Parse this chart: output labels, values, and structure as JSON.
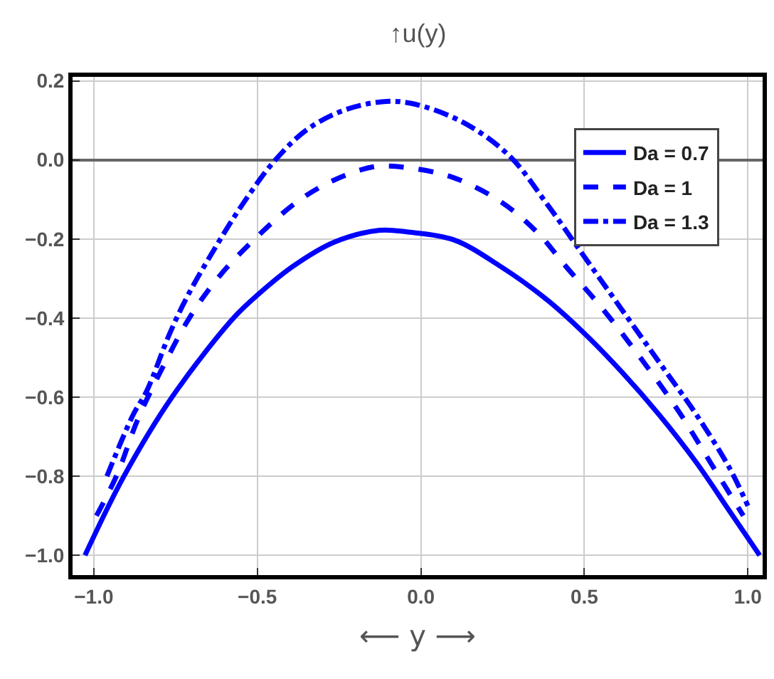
{
  "chart_data": {
    "type": "line",
    "title": "↑u(y)",
    "xlabel": "⟵ y ⟶",
    "xlim": [
      -1.065,
      1.045
    ],
    "xticks": [
      {
        "value": -1,
        "label": "−1.0"
      },
      {
        "value": -0.5,
        "label": "−0.5"
      },
      {
        "value": 0,
        "label": "0.0"
      },
      0.5,
      {
        "value": 1,
        "label": "1.0"
      }
    ],
    "ylim": [
      -1.05,
      0.21
    ],
    "yticks": [
      {
        "value": -1,
        "label": "−1.0"
      },
      {
        "value": -0.8,
        "label": "−0.8"
      },
      {
        "value": -0.6,
        "label": "−0.6"
      },
      {
        "value": -0.4,
        "label": "−0.4"
      },
      {
        "value": -0.2,
        "label": "−0.2"
      },
      {
        "value": 0,
        "label": "0.0"
      },
      0.2
    ],
    "grid": true,
    "legend": "top right",
    "series": [
      {
        "name": "Da = 0.7",
        "color": "#0000ff",
        "line_style": "solid",
        "x": [
          -1.027,
          -0.908,
          -0.761,
          -0.573,
          -0.5,
          -0.391,
          -0.265,
          -0.126,
          -0.043,
          0.1,
          0.243,
          0.386,
          0.5,
          0.614,
          0.729,
          0.843,
          0.943,
          1.036
        ],
        "values": [
          -1.0,
          -0.8,
          -0.6,
          -0.4,
          -0.342,
          -0.269,
          -0.208,
          -0.178,
          -0.182,
          -0.202,
          -0.269,
          -0.354,
          -0.439,
          -0.536,
          -0.645,
          -0.766,
          -0.887,
          -1.0
        ]
      },
      {
        "name": "Da = 1",
        "color": "#0000ff",
        "line_style": "dashed",
        "x": [
          -0.992,
          -0.929,
          -0.866,
          -0.789,
          -0.705,
          -0.615,
          -0.503,
          -0.377,
          -0.265,
          -0.14,
          -0.029,
          0.1,
          0.243,
          0.357,
          0.443,
          0.557,
          0.671,
          0.786,
          0.886,
          0.986
        ],
        "values": [
          -0.9,
          -0.796,
          -0.657,
          -0.524,
          -0.396,
          -0.293,
          -0.196,
          -0.105,
          -0.051,
          -0.017,
          -0.021,
          -0.045,
          -0.105,
          -0.184,
          -0.269,
          -0.378,
          -0.5,
          -0.633,
          -0.766,
          -0.9
        ]
      },
      {
        "name": "Da = 1.3",
        "color": "#0000ff",
        "line_style": "dashdot",
        "x": [
          -0.96,
          -0.88,
          -0.838,
          -0.768,
          -0.712,
          -0.628,
          -0.545,
          -0.447,
          -0.349,
          -0.237,
          -0.119,
          -0.029,
          0.129,
          0.271,
          0.386,
          0.5,
          0.614,
          0.729,
          0.843,
          0.943,
          1.0
        ],
        "values": [
          -0.8,
          -0.645,
          -0.584,
          -0.439,
          -0.342,
          -0.221,
          -0.112,
          -0.002,
          0.076,
          0.125,
          0.147,
          0.143,
          0.095,
          0.01,
          -0.112,
          -0.245,
          -0.378,
          -0.512,
          -0.645,
          -0.778,
          -0.875
        ]
      }
    ]
  }
}
